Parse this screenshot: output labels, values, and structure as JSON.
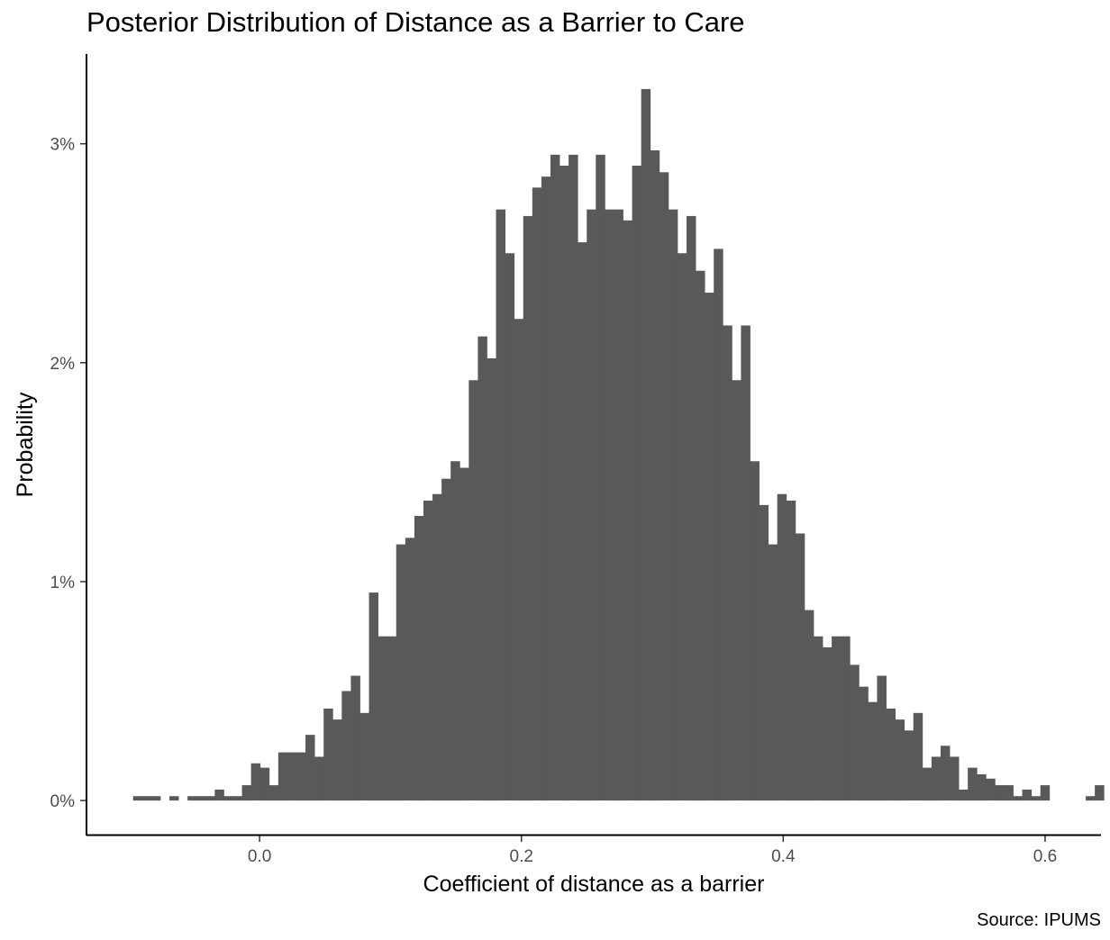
{
  "chart_data": {
    "type": "bar",
    "title": "Posterior Distribution of Distance as a Barrier to Care",
    "xlabel": "Coefficient of distance as a barrier",
    "ylabel": "Probability",
    "caption": "Source: IPUMS",
    "xlim": [
      -0.1322,
      0.6427
    ],
    "ylim": [
      -0.0016,
      0.0341
    ],
    "x_ticks": [
      0.0,
      0.2,
      0.4,
      0.6
    ],
    "x_tick_labels": [
      "0.0",
      "0.2",
      "0.4",
      "0.6"
    ],
    "y_ticks": [
      0,
      0.01,
      0.02,
      0.03
    ],
    "y_tick_labels": [
      "0%",
      "1%",
      "2%",
      "3%"
    ],
    "bar_color": "#595959",
    "grid": false,
    "bin_start": -0.0966,
    "bin_width": 0.00693,
    "values": [
      0.0002,
      0.0002,
      0.0002,
      0,
      0.0002,
      0,
      0.0002,
      0.0002,
      0.0002,
      0.0005,
      0.0002,
      0.0002,
      0.0007,
      0.0017,
      0.0015,
      0.0007,
      0.0022,
      0.0022,
      0.0022,
      0.003,
      0.002,
      0.0042,
      0.0037,
      0.005,
      0.0057,
      0.004,
      0.0095,
      0.0075,
      0.0075,
      0.0117,
      0.012,
      0.013,
      0.0137,
      0.014,
      0.0147,
      0.0155,
      0.0152,
      0.0192,
      0.0212,
      0.0202,
      0.027,
      0.025,
      0.022,
      0.0267,
      0.028,
      0.0285,
      0.0295,
      0.029,
      0.0295,
      0.0255,
      0.027,
      0.0295,
      0.027,
      0.027,
      0.0265,
      0.029,
      0.0325,
      0.0297,
      0.0287,
      0.027,
      0.025,
      0.0267,
      0.0242,
      0.0232,
      0.0252,
      0.0217,
      0.0192,
      0.0217,
      0.0155,
      0.0135,
      0.0117,
      0.014,
      0.0137,
      0.0122,
      0.0087,
      0.0075,
      0.007,
      0.0075,
      0.0075,
      0.0062,
      0.0052,
      0.0045,
      0.0057,
      0.0042,
      0.0037,
      0.0032,
      0.004,
      0.0015,
      0.002,
      0.0025,
      0.002,
      0.0005,
      0.0015,
      0.0012,
      0.001,
      0.0007,
      0.0007,
      0.0002,
      0.0005,
      0.0002,
      0.0007,
      0,
      0,
      0,
      0,
      0.0002,
      0.0007,
      0,
      0.0002
    ]
  }
}
